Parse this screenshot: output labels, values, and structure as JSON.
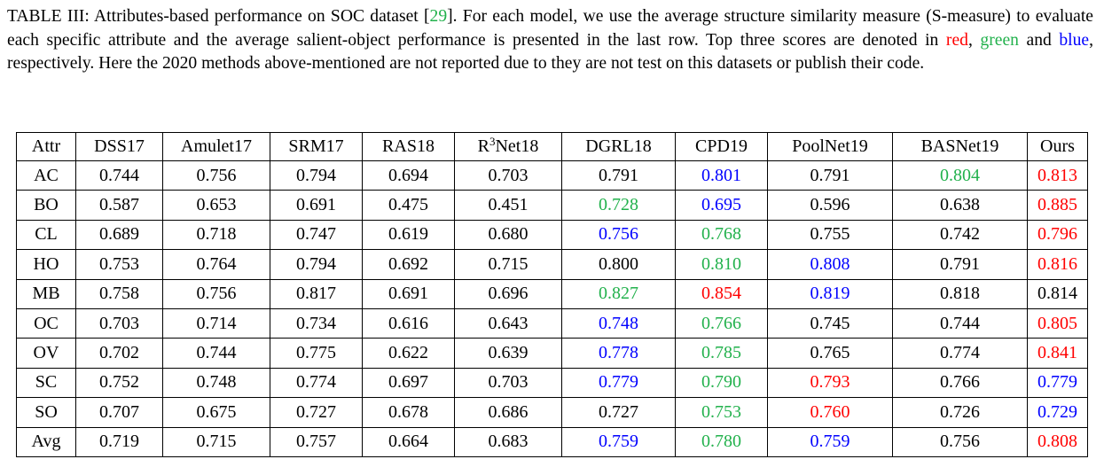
{
  "caption": {
    "part1": "TABLE III: Attributes-based performance on SOC dataset [",
    "cite": "29",
    "part2": "]. For each model, we use the average structure similarity measure (S-measure) to evaluate each specific attribute and the average salient-object performance is presented in the last row. Top three scores are denoted in ",
    "red_word": "red",
    "sep1": ", ",
    "green_word": "green",
    "sep2": " and ",
    "blue_word": "blue",
    "part3": ", respectively. Here the 2020 methods above-mentioned are not reported due to they are not test on this datasets or publish their code."
  },
  "colors": {
    "red": "#ff0000",
    "green": "#22b14c",
    "blue": "#0000ff",
    "black": "#000000"
  },
  "table": {
    "header": {
      "attr": "Attr",
      "cols": [
        "DSS17",
        "Amulet17",
        "SRM17",
        "RAS18"
      ],
      "r3_base": "R",
      "r3_sup": "3",
      "r3_rest": "Net18",
      "cols2": [
        "DGRL18",
        "CPD19",
        "PoolNet19",
        "BASNet19",
        "Ours"
      ]
    },
    "rows": [
      {
        "attr": "AC",
        "cells": [
          {
            "v": "0.744",
            "c": "black"
          },
          {
            "v": "0.756",
            "c": "black"
          },
          {
            "v": "0.794",
            "c": "black"
          },
          {
            "v": "0.694",
            "c": "black"
          },
          {
            "v": "0.703",
            "c": "black"
          },
          {
            "v": "0.791",
            "c": "black"
          },
          {
            "v": "0.801",
            "c": "blue"
          },
          {
            "v": "0.791",
            "c": "black"
          },
          {
            "v": "0.804",
            "c": "green"
          },
          {
            "v": "0.813",
            "c": "red"
          }
        ]
      },
      {
        "attr": "BO",
        "cells": [
          {
            "v": "0.587",
            "c": "black"
          },
          {
            "v": "0.653",
            "c": "black"
          },
          {
            "v": "0.691",
            "c": "black"
          },
          {
            "v": "0.475",
            "c": "black"
          },
          {
            "v": "0.451",
            "c": "black"
          },
          {
            "v": "0.728",
            "c": "green"
          },
          {
            "v": "0.695",
            "c": "blue"
          },
          {
            "v": "0.596",
            "c": "black"
          },
          {
            "v": "0.638",
            "c": "black"
          },
          {
            "v": "0.885",
            "c": "red"
          }
        ]
      },
      {
        "attr": "CL",
        "cells": [
          {
            "v": "0.689",
            "c": "black"
          },
          {
            "v": "0.718",
            "c": "black"
          },
          {
            "v": "0.747",
            "c": "black"
          },
          {
            "v": "0.619",
            "c": "black"
          },
          {
            "v": "0.680",
            "c": "black"
          },
          {
            "v": "0.756",
            "c": "blue"
          },
          {
            "v": "0.768",
            "c": "green"
          },
          {
            "v": "0.755",
            "c": "black"
          },
          {
            "v": "0.742",
            "c": "black"
          },
          {
            "v": "0.796",
            "c": "red"
          }
        ]
      },
      {
        "attr": "HO",
        "cells": [
          {
            "v": "0.753",
            "c": "black"
          },
          {
            "v": "0.764",
            "c": "black"
          },
          {
            "v": "0.794",
            "c": "black"
          },
          {
            "v": "0.692",
            "c": "black"
          },
          {
            "v": "0.715",
            "c": "black"
          },
          {
            "v": "0.800",
            "c": "black"
          },
          {
            "v": "0.810",
            "c": "green"
          },
          {
            "v": "0.808",
            "c": "blue"
          },
          {
            "v": "0.791",
            "c": "black"
          },
          {
            "v": "0.816",
            "c": "red"
          }
        ]
      },
      {
        "attr": "MB",
        "cells": [
          {
            "v": "0.758",
            "c": "black"
          },
          {
            "v": "0.756",
            "c": "black"
          },
          {
            "v": "0.817",
            "c": "black"
          },
          {
            "v": "0.691",
            "c": "black"
          },
          {
            "v": "0.696",
            "c": "black"
          },
          {
            "v": "0.827",
            "c": "green"
          },
          {
            "v": "0.854",
            "c": "red"
          },
          {
            "v": "0.819",
            "c": "blue"
          },
          {
            "v": "0.818",
            "c": "black"
          },
          {
            "v": "0.814",
            "c": "black"
          }
        ]
      },
      {
        "attr": "OC",
        "cells": [
          {
            "v": "0.703",
            "c": "black"
          },
          {
            "v": "0.714",
            "c": "black"
          },
          {
            "v": "0.734",
            "c": "black"
          },
          {
            "v": "0.616",
            "c": "black"
          },
          {
            "v": "0.643",
            "c": "black"
          },
          {
            "v": "0.748",
            "c": "blue"
          },
          {
            "v": "0.766",
            "c": "green"
          },
          {
            "v": "0.745",
            "c": "black"
          },
          {
            "v": "0.744",
            "c": "black"
          },
          {
            "v": "0.805",
            "c": "red"
          }
        ]
      },
      {
        "attr": "OV",
        "cells": [
          {
            "v": "0.702",
            "c": "black"
          },
          {
            "v": "0.744",
            "c": "black"
          },
          {
            "v": "0.775",
            "c": "black"
          },
          {
            "v": "0.622",
            "c": "black"
          },
          {
            "v": "0.639",
            "c": "black"
          },
          {
            "v": "0.778",
            "c": "blue"
          },
          {
            "v": "0.785",
            "c": "green"
          },
          {
            "v": "0.765",
            "c": "black"
          },
          {
            "v": "0.774",
            "c": "black"
          },
          {
            "v": "0.841",
            "c": "red"
          }
        ]
      },
      {
        "attr": "SC",
        "cells": [
          {
            "v": "0.752",
            "c": "black"
          },
          {
            "v": "0.748",
            "c": "black"
          },
          {
            "v": "0.774",
            "c": "black"
          },
          {
            "v": "0.697",
            "c": "black"
          },
          {
            "v": "0.703",
            "c": "black"
          },
          {
            "v": "0.779",
            "c": "blue"
          },
          {
            "v": "0.790",
            "c": "green"
          },
          {
            "v": "0.793",
            "c": "red"
          },
          {
            "v": "0.766",
            "c": "black"
          },
          {
            "v": "0.779",
            "c": "blue"
          }
        ]
      },
      {
        "attr": "SO",
        "cells": [
          {
            "v": "0.707",
            "c": "black"
          },
          {
            "v": "0.675",
            "c": "black"
          },
          {
            "v": "0.727",
            "c": "black"
          },
          {
            "v": "0.678",
            "c": "black"
          },
          {
            "v": "0.686",
            "c": "black"
          },
          {
            "v": "0.727",
            "c": "black"
          },
          {
            "v": "0.753",
            "c": "green"
          },
          {
            "v": "0.760",
            "c": "red"
          },
          {
            "v": "0.726",
            "c": "black"
          },
          {
            "v": "0.729",
            "c": "blue"
          }
        ]
      },
      {
        "attr": "Avg",
        "cells": [
          {
            "v": "0.719",
            "c": "black"
          },
          {
            "v": "0.715",
            "c": "black"
          },
          {
            "v": "0.757",
            "c": "black"
          },
          {
            "v": "0.664",
            "c": "black"
          },
          {
            "v": "0.683",
            "c": "black"
          },
          {
            "v": "0.759",
            "c": "blue"
          },
          {
            "v": "0.780",
            "c": "green"
          },
          {
            "v": "0.759",
            "c": "blue"
          },
          {
            "v": "0.756",
            "c": "black"
          },
          {
            "v": "0.808",
            "c": "red"
          }
        ]
      }
    ]
  }
}
